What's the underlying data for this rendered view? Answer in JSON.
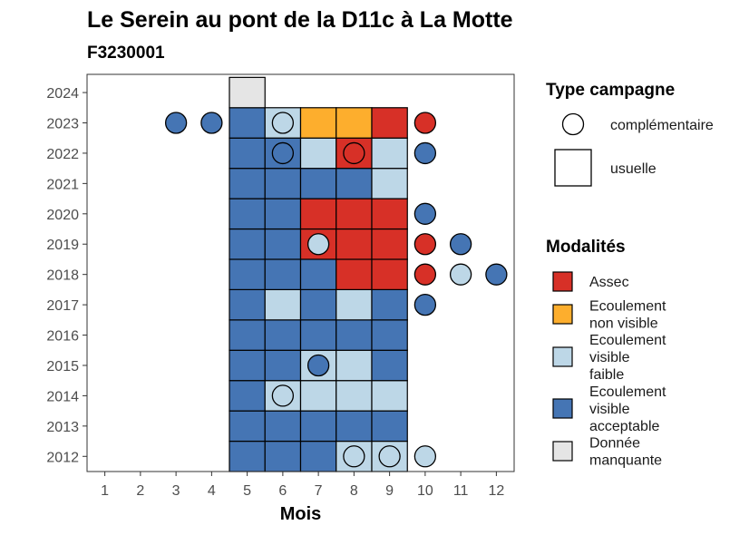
{
  "chart_data": {
    "type": "heatmap",
    "title": "Le Serein au pont de la D11c à La Motte",
    "subtitle": "F3230001",
    "xlabel": "Mois",
    "ylabel": "",
    "x_ticks": [
      "1",
      "2",
      "3",
      "4",
      "5",
      "6",
      "7",
      "8",
      "9",
      "10",
      "11",
      "12"
    ],
    "y_ticks": [
      "2012",
      "2013",
      "2014",
      "2015",
      "2016",
      "2017",
      "2018",
      "2019",
      "2020",
      "2021",
      "2022",
      "2023",
      "2024"
    ],
    "xlim": [
      0.5,
      12.5
    ],
    "ylim": [
      2011.5,
      2024.6
    ],
    "grid": false,
    "legend_position": "right",
    "legends": {
      "type": {
        "title": "Type campagne",
        "items": [
          {
            "key": "complementaire",
            "label": "complémentaire",
            "shape": "circle"
          },
          {
            "key": "usuelle",
            "label": "usuelle",
            "shape": "square"
          }
        ]
      },
      "modalite": {
        "title": "Modalités",
        "items": [
          {
            "key": "assec",
            "label_lines": [
              "Assec"
            ],
            "color": "#D73027"
          },
          {
            "key": "nonvisible",
            "label_lines": [
              "Ecoulement",
              "non visible"
            ],
            "color": "#FDAE2D"
          },
          {
            "key": "faible",
            "label_lines": [
              "Ecoulement",
              "visible",
              "faible"
            ],
            "color": "#BDD7E7"
          },
          {
            "key": "acceptable",
            "label_lines": [
              "Ecoulement",
              "visible",
              "acceptable"
            ],
            "color": "#4575B4"
          },
          {
            "key": "manquante",
            "label_lines": [
              "Donnée",
              "manquante"
            ],
            "color": "#E5E5E5"
          }
        ]
      }
    },
    "usuelle": [
      {
        "year": 2012,
        "month": 5,
        "m": "acceptable"
      },
      {
        "year": 2012,
        "month": 6,
        "m": "acceptable"
      },
      {
        "year": 2012,
        "month": 7,
        "m": "acceptable"
      },
      {
        "year": 2012,
        "month": 8,
        "m": "faible"
      },
      {
        "year": 2012,
        "month": 9,
        "m": "faible"
      },
      {
        "year": 2013,
        "month": 5,
        "m": "acceptable"
      },
      {
        "year": 2013,
        "month": 6,
        "m": "acceptable"
      },
      {
        "year": 2013,
        "month": 7,
        "m": "acceptable"
      },
      {
        "year": 2013,
        "month": 8,
        "m": "acceptable"
      },
      {
        "year": 2013,
        "month": 9,
        "m": "acceptable"
      },
      {
        "year": 2014,
        "month": 5,
        "m": "acceptable"
      },
      {
        "year": 2014,
        "month": 6,
        "m": "faible"
      },
      {
        "year": 2014,
        "month": 7,
        "m": "faible"
      },
      {
        "year": 2014,
        "month": 8,
        "m": "faible"
      },
      {
        "year": 2014,
        "month": 9,
        "m": "faible"
      },
      {
        "year": 2015,
        "month": 5,
        "m": "acceptable"
      },
      {
        "year": 2015,
        "month": 6,
        "m": "acceptable"
      },
      {
        "year": 2015,
        "month": 7,
        "m": "faible"
      },
      {
        "year": 2015,
        "month": 8,
        "m": "faible"
      },
      {
        "year": 2015,
        "month": 9,
        "m": "acceptable"
      },
      {
        "year": 2016,
        "month": 5,
        "m": "acceptable"
      },
      {
        "year": 2016,
        "month": 6,
        "m": "acceptable"
      },
      {
        "year": 2016,
        "month": 7,
        "m": "acceptable"
      },
      {
        "year": 2016,
        "month": 8,
        "m": "acceptable"
      },
      {
        "year": 2016,
        "month": 9,
        "m": "acceptable"
      },
      {
        "year": 2017,
        "month": 5,
        "m": "acceptable"
      },
      {
        "year": 2017,
        "month": 6,
        "m": "faible"
      },
      {
        "year": 2017,
        "month": 7,
        "m": "acceptable"
      },
      {
        "year": 2017,
        "month": 8,
        "m": "faible"
      },
      {
        "year": 2017,
        "month": 9,
        "m": "acceptable"
      },
      {
        "year": 2018,
        "month": 5,
        "m": "acceptable"
      },
      {
        "year": 2018,
        "month": 6,
        "m": "acceptable"
      },
      {
        "year": 2018,
        "month": 7,
        "m": "acceptable"
      },
      {
        "year": 2018,
        "month": 8,
        "m": "assec"
      },
      {
        "year": 2018,
        "month": 9,
        "m": "assec"
      },
      {
        "year": 2019,
        "month": 5,
        "m": "acceptable"
      },
      {
        "year": 2019,
        "month": 6,
        "m": "acceptable"
      },
      {
        "year": 2019,
        "month": 7,
        "m": "assec"
      },
      {
        "year": 2019,
        "month": 8,
        "m": "assec"
      },
      {
        "year": 2019,
        "month": 9,
        "m": "assec"
      },
      {
        "year": 2020,
        "month": 5,
        "m": "acceptable"
      },
      {
        "year": 2020,
        "month": 6,
        "m": "acceptable"
      },
      {
        "year": 2020,
        "month": 7,
        "m": "assec"
      },
      {
        "year": 2020,
        "month": 8,
        "m": "assec"
      },
      {
        "year": 2020,
        "month": 9,
        "m": "assec"
      },
      {
        "year": 2021,
        "month": 5,
        "m": "acceptable"
      },
      {
        "year": 2021,
        "month": 6,
        "m": "acceptable"
      },
      {
        "year": 2021,
        "month": 7,
        "m": "acceptable"
      },
      {
        "year": 2021,
        "month": 8,
        "m": "acceptable"
      },
      {
        "year": 2021,
        "month": 9,
        "m": "faible"
      },
      {
        "year": 2022,
        "month": 5,
        "m": "acceptable"
      },
      {
        "year": 2022,
        "month": 6,
        "m": "acceptable"
      },
      {
        "year": 2022,
        "month": 7,
        "m": "faible"
      },
      {
        "year": 2022,
        "month": 8,
        "m": "assec"
      },
      {
        "year": 2022,
        "month": 9,
        "m": "faible"
      },
      {
        "year": 2023,
        "month": 5,
        "m": "acceptable"
      },
      {
        "year": 2023,
        "month": 6,
        "m": "faible"
      },
      {
        "year": 2023,
        "month": 7,
        "m": "nonvisible"
      },
      {
        "year": 2023,
        "month": 8,
        "m": "nonvisible"
      },
      {
        "year": 2023,
        "month": 9,
        "m": "assec"
      },
      {
        "year": 2024,
        "month": 5,
        "m": "manquante"
      }
    ],
    "complementaire": [
      {
        "year": 2012,
        "month": 8,
        "m": "faible"
      },
      {
        "year": 2012,
        "month": 9,
        "m": "faible"
      },
      {
        "year": 2012,
        "month": 10,
        "m": "faible"
      },
      {
        "year": 2014,
        "month": 6,
        "m": "faible"
      },
      {
        "year": 2015,
        "month": 7,
        "m": "acceptable"
      },
      {
        "year": 2017,
        "month": 10,
        "m": "acceptable"
      },
      {
        "year": 2018,
        "month": 10,
        "m": "assec"
      },
      {
        "year": 2018,
        "month": 11,
        "m": "faible"
      },
      {
        "year": 2018,
        "month": 12,
        "m": "acceptable"
      },
      {
        "year": 2019,
        "month": 7,
        "m": "faible"
      },
      {
        "year": 2019,
        "month": 10,
        "m": "assec"
      },
      {
        "year": 2019,
        "month": 11,
        "m": "acceptable"
      },
      {
        "year": 2020,
        "month": 10,
        "m": "acceptable"
      },
      {
        "year": 2022,
        "month": 6,
        "m": "acceptable"
      },
      {
        "year": 2022,
        "month": 8,
        "m": "assec"
      },
      {
        "year": 2022,
        "month": 10,
        "m": "acceptable"
      },
      {
        "year": 2023,
        "month": 3,
        "m": "acceptable"
      },
      {
        "year": 2023,
        "month": 4,
        "m": "acceptable"
      },
      {
        "year": 2023,
        "month": 6,
        "m": "faible"
      },
      {
        "year": 2023,
        "month": 10,
        "m": "assec"
      }
    ]
  }
}
